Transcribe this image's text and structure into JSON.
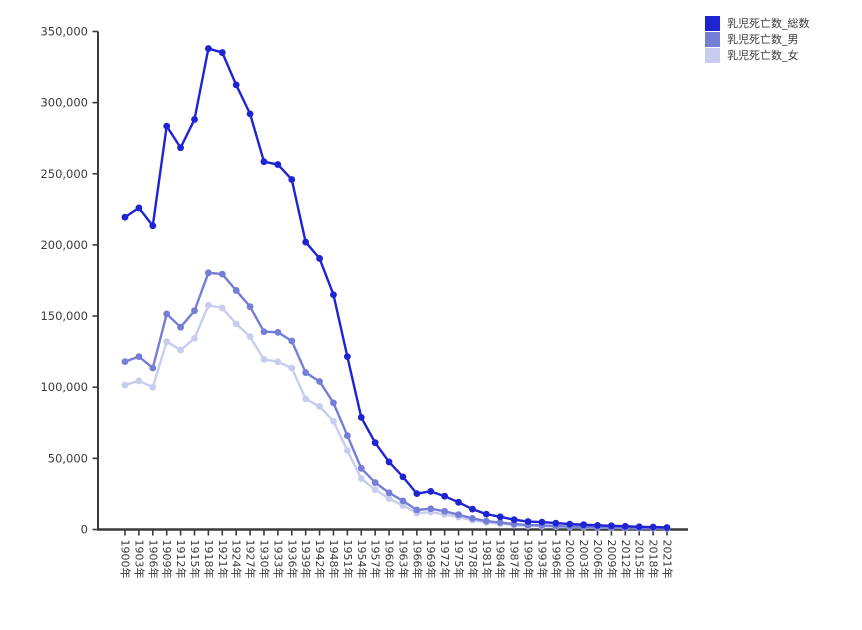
{
  "chart_data": {
    "type": "line",
    "title": "",
    "xlabel": "",
    "ylabel": "",
    "grid": false,
    "legend_position": "top-right",
    "ylim": [
      0,
      350000
    ],
    "y_tick_step": 50000,
    "y_tick_values": [
      0,
      50000,
      100000,
      150000,
      200000,
      250000,
      300000,
      350000
    ],
    "y_tick_labels": [
      "0",
      "50,000",
      "100,000",
      "150,000",
      "200,000",
      "250,000",
      "300,000",
      "350,000"
    ],
    "categories": [
      "1900年",
      "1903年",
      "1906年",
      "1909年",
      "1912年",
      "1915年",
      "1918年",
      "1921年",
      "1924年",
      "1927年",
      "1930年",
      "1933年",
      "1936年",
      "1939年",
      "1942年",
      "1948年",
      "1951年",
      "1954年",
      "1957年",
      "1960年",
      "1963年",
      "1966年",
      "1969年",
      "1972年",
      "1975年",
      "1978年",
      "1981年",
      "1984年",
      "1987年",
      "1990年",
      "1993年",
      "1996年",
      "2000年",
      "2003年",
      "2006年",
      "2009年",
      "2012年",
      "2015年",
      "2018年",
      "2021年"
    ],
    "series": [
      {
        "name": "乳児死亡数_総数",
        "color": "#1e24d2",
        "values": [
          219500,
          226000,
          213500,
          283500,
          268300,
          288200,
          338000,
          335200,
          312500,
          292100,
          258500,
          256500,
          246000,
          202000,
          190500,
          165000,
          121500,
          78800,
          61000,
          47500,
          37000,
          25200,
          26800,
          23400,
          19100,
          14300,
          10800,
          8900,
          6900,
          5600,
          5200,
          4500,
          3800,
          3400,
          2900,
          2600,
          2300,
          1900,
          1750,
          1400
        ]
      },
      {
        "name": "乳児死亡数_男",
        "color": "#757ed7",
        "values": [
          118000,
          121500,
          113500,
          151500,
          142200,
          153800,
          180400,
          179500,
          168000,
          156600,
          139000,
          138600,
          132500,
          110300,
          104000,
          89000,
          66000,
          43000,
          33000,
          25800,
          20100,
          13700,
          14600,
          12800,
          10400,
          7800,
          5900,
          4900,
          3800,
          3100,
          2900,
          2500,
          2100,
          1900,
          1600,
          1400,
          1250,
          1050,
          950,
          750
        ]
      },
      {
        "name": "乳児死亡数_女",
        "color": "#c8cdf0",
        "values": [
          101500,
          104500,
          100000,
          132000,
          126100,
          134400,
          157600,
          155700,
          144500,
          135500,
          119500,
          117900,
          113500,
          91700,
          86500,
          76000,
          55500,
          35800,
          28000,
          21700,
          16900,
          11500,
          12200,
          10600,
          8700,
          6500,
          4900,
          4000,
          3100,
          2500,
          2300,
          2000,
          1700,
          1500,
          1300,
          1200,
          1050,
          850,
          800,
          650
        ]
      }
    ],
    "colors": {
      "axis": "#3a3a3a",
      "tick_text": "#3c3c3c",
      "background": "#ffffff"
    }
  }
}
